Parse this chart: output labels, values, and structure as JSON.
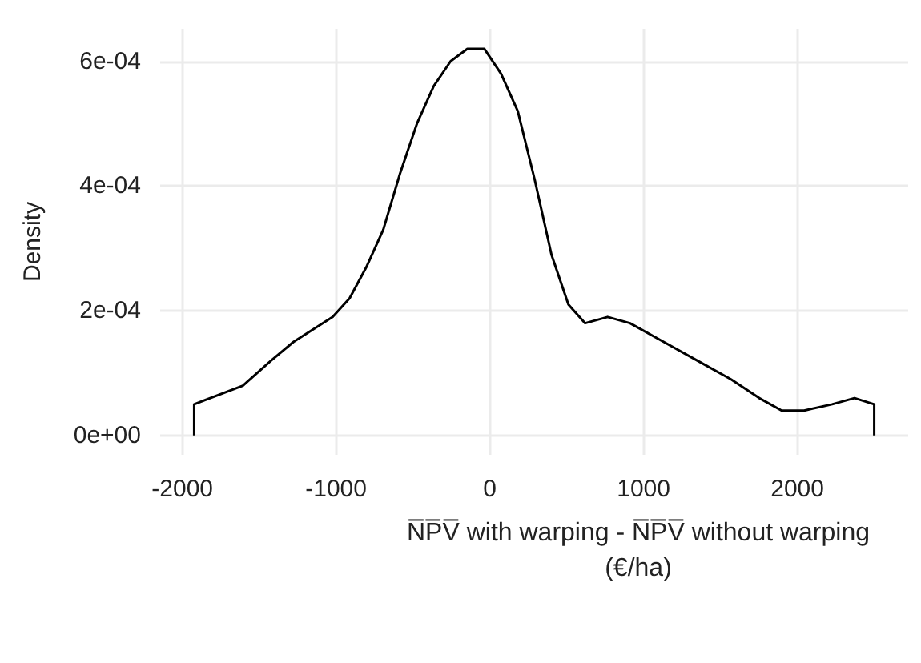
{
  "chart_data": {
    "type": "line",
    "xlabel": "N̅P̅V̅ with warping - N̅P̅V̅ without warping\n(€/ha)",
    "ylabel": "Density",
    "series": [
      {
        "color": "#000000",
        "x": [
          -1923,
          -1923,
          -1606,
          -1423,
          -1277,
          -1022,
          -912,
          -803,
          -693,
          -584,
          -474,
          -365,
          -255,
          -146,
          -36,
          73,
          182,
          292,
          401,
          511,
          620,
          766,
          912,
          1131,
          1350,
          1569,
          1752,
          1898,
          2044,
          2226,
          2372,
          2500,
          2500
        ],
        "values": [
          0,
          5e-05,
          8e-05,
          0.00012,
          0.00015,
          0.00019,
          0.00022,
          0.00027,
          0.00033,
          0.00042,
          0.0005,
          0.00056,
          0.0006,
          0.00062,
          0.00062,
          0.00058,
          0.00052,
          0.00041,
          0.00029,
          0.00021,
          0.00018,
          0.00019,
          0.00018,
          0.00015,
          0.00012,
          9e-05,
          6e-05,
          4e-05,
          4e-05,
          5e-05,
          6e-05,
          5e-05,
          0
        ]
      }
    ],
    "xlim": [
      -2144,
      2721
    ],
    "xticks": [
      -2000,
      -1000,
      0,
      1000,
      2000
    ],
    "ylim": [
      -3.1e-05,
      0.000652
    ],
    "yticks": [
      {
        "value": 0,
        "label": "0e+00"
      },
      {
        "value": 0.0002,
        "label": "2e-04"
      },
      {
        "value": 0.0004,
        "label": "4e-04"
      },
      {
        "value": 0.0006,
        "label": "6e-04"
      }
    ],
    "grid": true,
    "marker": "none",
    "line_style": "solid"
  }
}
